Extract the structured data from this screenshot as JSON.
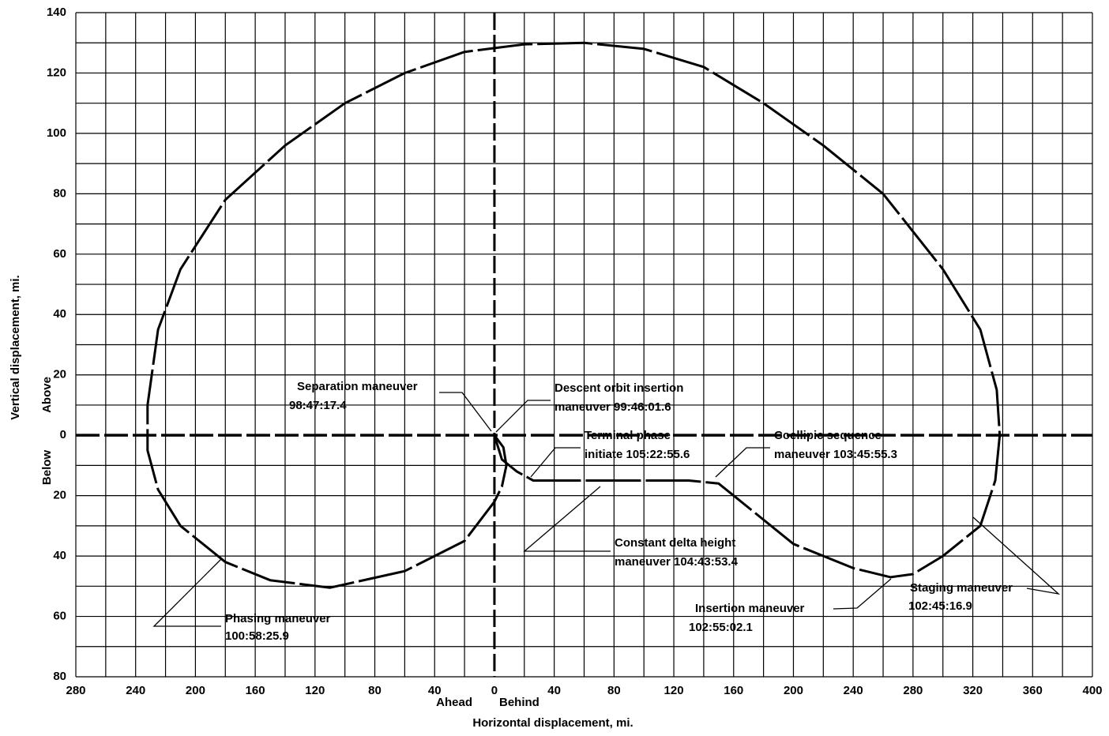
{
  "chart_data": {
    "type": "line",
    "xlabel": "Horizontal displacement, mi.",
    "ylabel": "Vertical displacement, mi.",
    "x_side_labels": [
      "Ahead",
      "Behind"
    ],
    "y_side_labels": [
      "Above",
      "Below"
    ],
    "xlim": [
      -280,
      400
    ],
    "ylim": [
      -80,
      140
    ],
    "xticks": [
      {
        "value": -280,
        "label": "280"
      },
      {
        "value": -240,
        "label": "240"
      },
      {
        "value": -200,
        "label": "200"
      },
      {
        "value": -160,
        "label": "160"
      },
      {
        "value": -120,
        "label": "120"
      },
      {
        "value": -80,
        "label": "80"
      },
      {
        "value": -40,
        "label": "40"
      },
      0,
      40,
      80,
      120,
      160,
      200,
      240,
      280,
      320,
      360,
      400
    ],
    "yticks": [
      {
        "value": -80,
        "label": "80"
      },
      {
        "value": -60,
        "label": "60"
      },
      {
        "value": -40,
        "label": "40"
      },
      {
        "value": -20,
        "label": "20"
      },
      0,
      20,
      40,
      60,
      80,
      100,
      120,
      140
    ],
    "x_minor_ticks": [
      -260,
      -220,
      -180,
      -140,
      -100,
      -60,
      -20,
      20,
      60,
      100,
      140,
      180,
      220,
      260,
      300,
      340,
      380
    ],
    "y_minor_ticks": [
      -70,
      -50,
      -30,
      -10,
      10,
      30,
      50,
      70,
      90,
      110,
      130
    ],
    "grid": true,
    "series": [
      {
        "color": "#000000",
        "x": [
          0,
          6,
          8,
          5,
          0,
          -20,
          -60,
          -110,
          -150,
          -180,
          -210,
          -225,
          -232,
          -232,
          -225,
          -210,
          -180,
          -140,
          -100,
          -60,
          -20,
          20,
          60,
          100,
          140,
          180,
          220,
          260,
          300,
          325,
          336,
          338,
          335,
          325,
          300,
          280,
          265,
          240,
          200,
          160,
          150,
          130,
          80,
          40,
          26,
          15,
          5,
          0
        ],
        "y": [
          0,
          -4,
          -10,
          -17,
          -22,
          -35,
          -45,
          -50.5,
          -48,
          -42,
          -30,
          -18,
          -5,
          10,
          35,
          55,
          78,
          96,
          110,
          120,
          127,
          129.5,
          130,
          128,
          122,
          110,
          96,
          80,
          55,
          35,
          15,
          0,
          -15,
          -30,
          -40,
          -46,
          -47,
          -44,
          -36,
          -20,
          -16,
          -15,
          -15,
          -15,
          -15,
          -12,
          -8,
          0
        ]
      }
    ],
    "annotations": [
      {
        "lines": [
          "Separation maneuver",
          "98:47:17.4"
        ]
      },
      {
        "lines": [
          "Descent orbit insertion",
          "maneuver 99:46:01.6"
        ]
      },
      {
        "lines": [
          "Terminal phase",
          "initiate 105:22:55.6"
        ]
      },
      {
        "lines": [
          "Coellipic sequence",
          "maneuver 103:45:55.3"
        ]
      },
      {
        "lines": [
          "Constant delta height",
          "maneuver 104:43:53.4"
        ]
      },
      {
        "lines": [
          "Staging maneuver",
          "102:45:16.9"
        ]
      },
      {
        "lines": [
          "Insertion maneuver",
          "102:55:02.1"
        ]
      },
      {
        "lines": [
          "Phasing maneuver",
          "100:58:25.9"
        ]
      }
    ]
  }
}
